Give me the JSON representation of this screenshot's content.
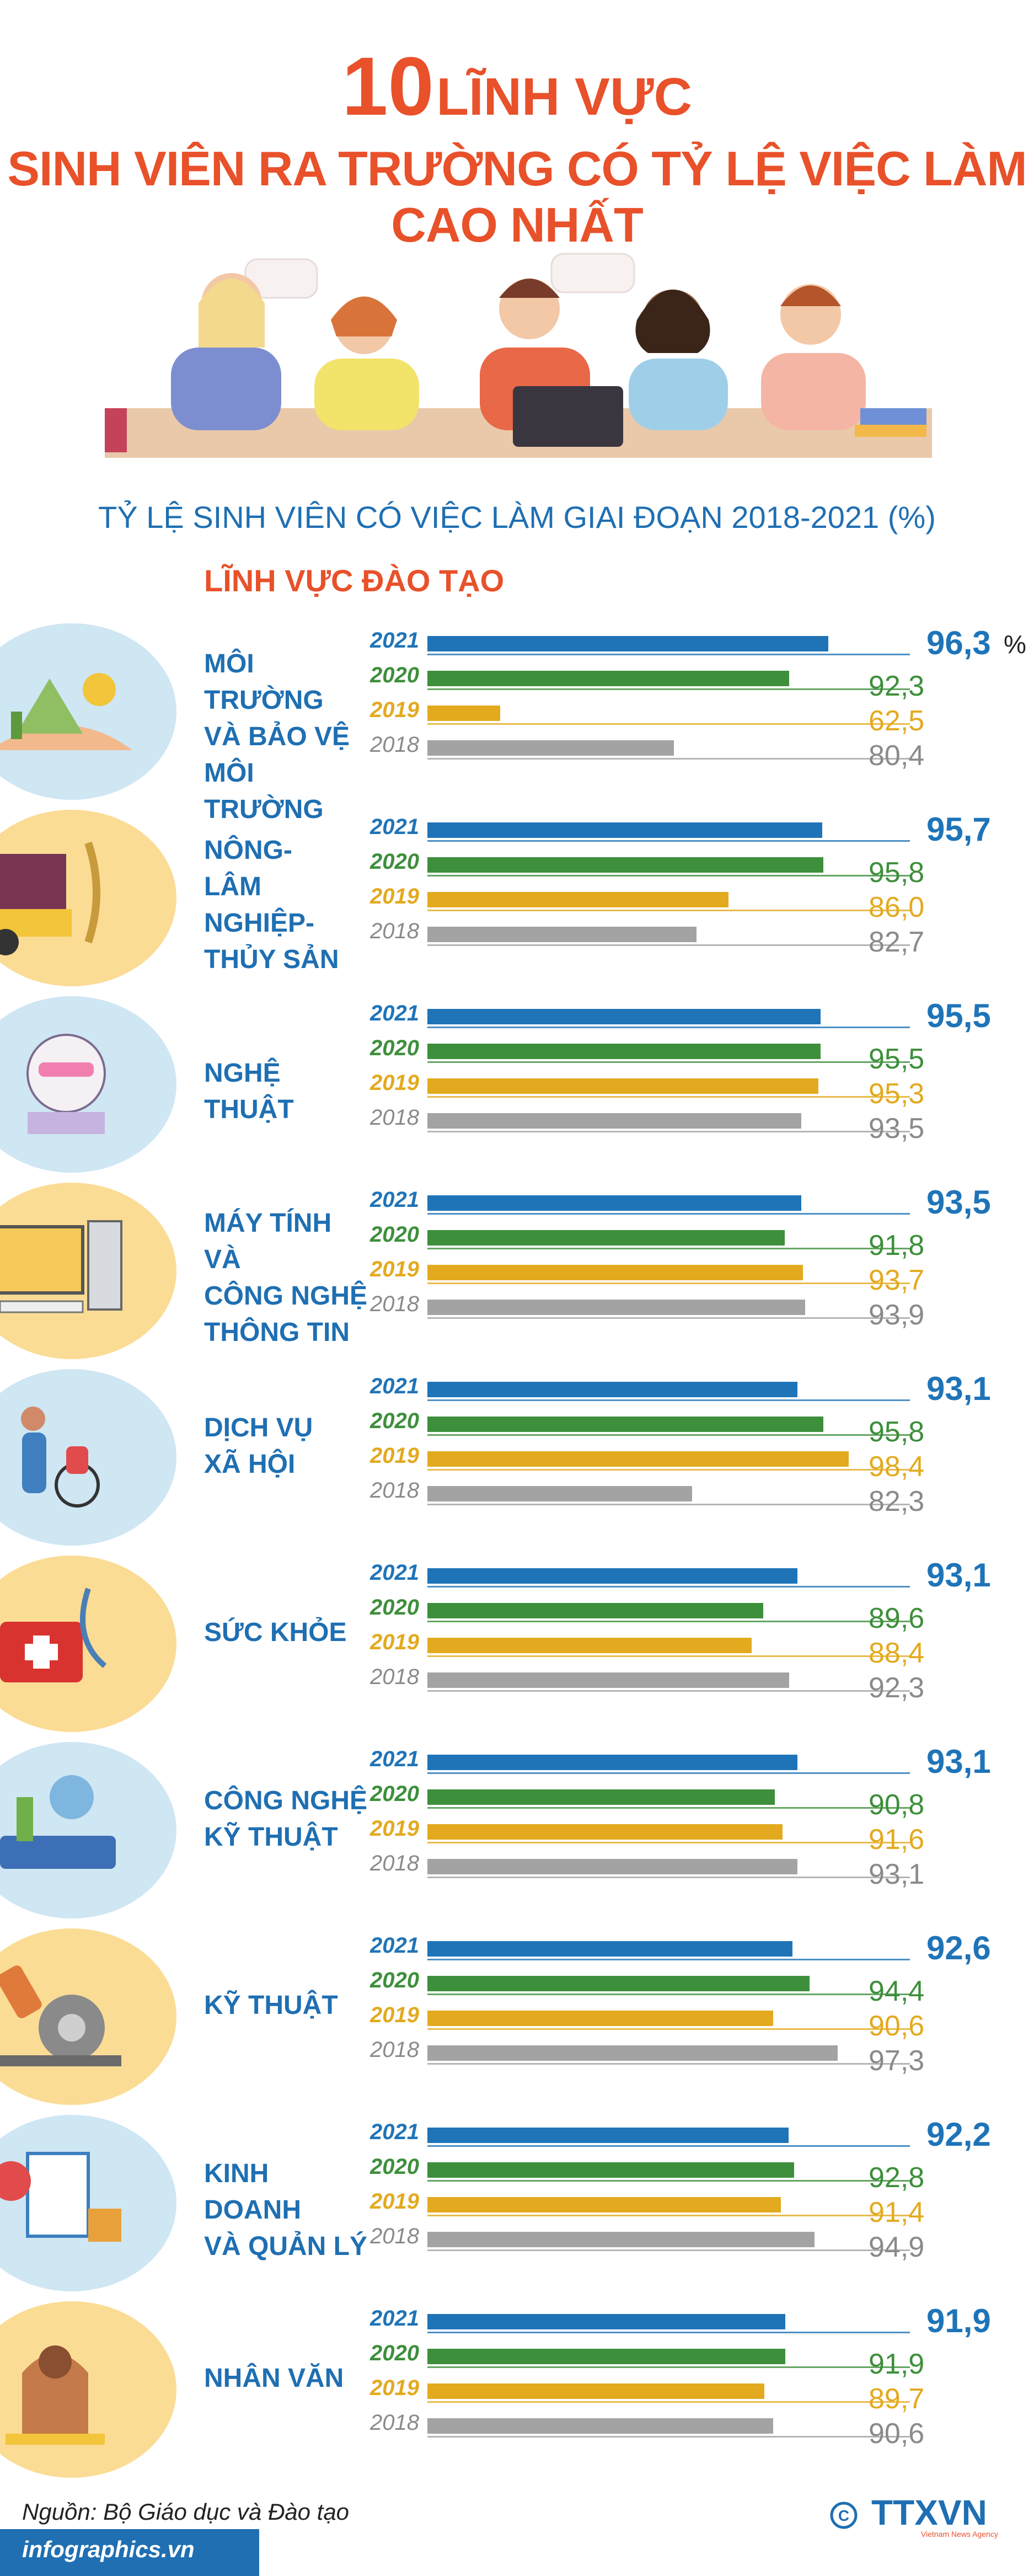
{
  "title": {
    "number": "10",
    "line1_rest": "LĨNH VỰC",
    "line2": "SINH VIÊN RA TRƯỜNG CÓ TỶ LỆ VIỆC LÀM CAO NHẤT"
  },
  "subtitle": "TỶ LỆ SINH VIÊN CÓ VIỆC LÀM GIAI ĐOẠN 2018-2021 (%)",
  "section_label": "LĨNH VỰC ĐÀO TẠO",
  "unit_label": "%",
  "footer": {
    "source": "Nguồn: Bộ Giáo dục và Đào tạo",
    "website": "infographics.vn",
    "logo_text": "TTXVN",
    "logo_sub": "Vietnam News Agency",
    "copyright": "©"
  },
  "colors": {
    "title": "#e8512a",
    "accent_blue": "#1f6fb2",
    "y2021": "#1f74b8",
    "y2020": "#3d8f3b",
    "y2019": "#e3aa1f",
    "y2018": "#a3a3a3",
    "circle_blue": "#cfe6f3",
    "circle_yellow": "#fbdc95"
  },
  "chart_data": {
    "type": "bar",
    "orientation": "horizontal",
    "title": "TỶ LỆ SINH VIÊN CÓ VIỆC LÀM GIAI ĐOẠN 2018-2021 (%)",
    "unit": "%",
    "years": [
      "2021",
      "2020",
      "2019",
      "2018"
    ],
    "categories": [
      {
        "label": [
          "MÔI TRƯỜNG",
          "VÀ BẢO VỆ",
          "MÔI TRƯỜNG"
        ],
        "values": [
          "96,3",
          "92,3",
          "62,5",
          "80,4"
        ],
        "icon": "environment-icon"
      },
      {
        "label": [
          "NÔNG-",
          "LÂM NGHIỆP-",
          "THỦY SẢN"
        ],
        "values": [
          "95,7",
          "95,8",
          "86,0",
          "82,7"
        ],
        "icon": "agriculture-icon"
      },
      {
        "label": [
          "NGHỆ THUẬT"
        ],
        "values": [
          "95,5",
          "95,5",
          "95,3",
          "93,5"
        ],
        "icon": "art-icon"
      },
      {
        "label": [
          "MÁY TÍNH VÀ",
          "CÔNG NGHỆ",
          "THÔNG TIN"
        ],
        "values": [
          "93,5",
          "91,8",
          "93,7",
          "93,9"
        ],
        "icon": "computer-icon"
      },
      {
        "label": [
          "DỊCH VỤ",
          "XÃ HỘI"
        ],
        "values": [
          "93,1",
          "95,8",
          "98,4",
          "82,3"
        ],
        "icon": "social-service-icon"
      },
      {
        "label": [
          "SỨC KHỎE"
        ],
        "values": [
          "93,1",
          "89,6",
          "88,4",
          "92,3"
        ],
        "icon": "health-icon"
      },
      {
        "label": [
          "CÔNG NGHỆ",
          "KỸ THUẬT"
        ],
        "values": [
          "93,1",
          "90,8",
          "91,6",
          "93,1"
        ],
        "icon": "engineering-tech-icon"
      },
      {
        "label": [
          "KỸ THUẬT"
        ],
        "values": [
          "92,6",
          "94,4",
          "90,6",
          "97,3"
        ],
        "icon": "engineering-icon"
      },
      {
        "label": [
          "KINH DOANH",
          "VÀ QUẢN LÝ"
        ],
        "values": [
          "92,2",
          "92,8",
          "91,4",
          "94,9"
        ],
        "icon": "business-icon"
      },
      {
        "label": [
          "NHÂN VĂN"
        ],
        "values": [
          "91,9",
          "91,9",
          "89,7",
          "90,6"
        ],
        "icon": "humanities-icon"
      }
    ]
  }
}
